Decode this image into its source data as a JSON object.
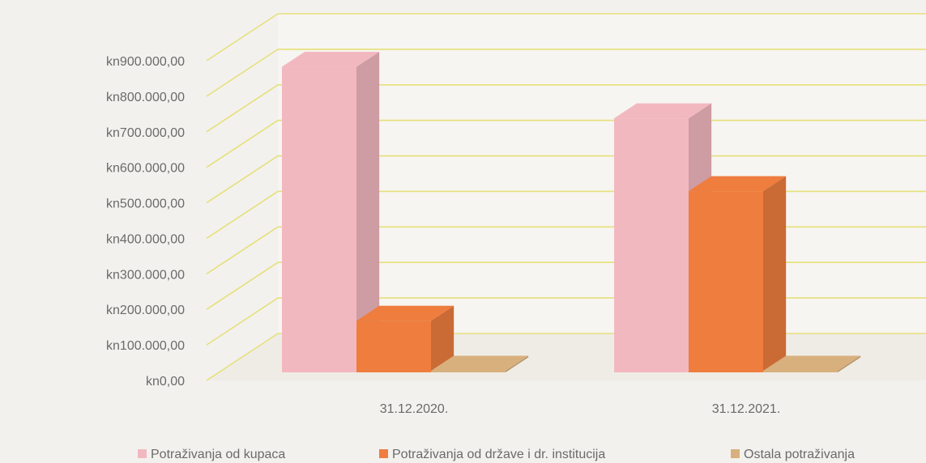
{
  "chart_data": {
    "type": "bar",
    "categories": [
      "31.12.2020.",
      "31.12.2021."
    ],
    "series": [
      {
        "name": "Potraživanja od kupaca",
        "values": [
          860000,
          715000
        ],
        "color": "#f2b8c0"
      },
      {
        "name": "Potraživanja od države i dr. institucija",
        "values": [
          145000,
          510000
        ],
        "color": "#ee7d3e"
      },
      {
        "name": "Ostala potraživanja",
        "values": [
          0,
          0
        ],
        "color": "#d8b07e"
      }
    ],
    "yticks": [
      "kn0,00",
      "kn100.000,00",
      "kn200.000,00",
      "kn300.000,00",
      "kn400.000,00",
      "kn500.000,00",
      "kn600.000,00",
      "kn700.000,00",
      "kn800.000,00",
      "kn900.000,00"
    ],
    "ylim": [
      0,
      900000
    ],
    "grid": true,
    "legend": "bottom",
    "three_d": true
  }
}
